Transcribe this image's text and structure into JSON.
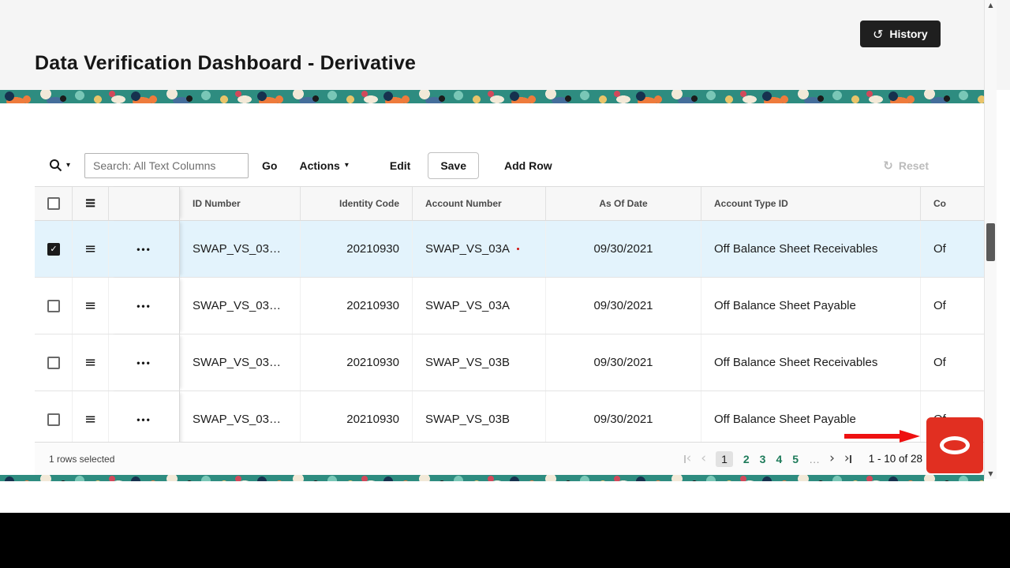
{
  "header": {
    "title": "Data Verification Dashboard - Derivative",
    "history": {
      "label": "History"
    }
  },
  "toolbar": {
    "search": {
      "placeholder": "Search: All Text Columns"
    },
    "go": "Go",
    "actions": "Actions",
    "edit": "Edit",
    "save": "Save",
    "add_row": "Add Row",
    "reset": "Reset"
  },
  "grid": {
    "columns": [
      {
        "label": "ID Number",
        "align": "left"
      },
      {
        "label": "Identity Code",
        "align": "right"
      },
      {
        "label": "Account Number",
        "align": "left"
      },
      {
        "label": "As Of Date",
        "align": "center"
      },
      {
        "label": "Account Type ID",
        "align": "left"
      },
      {
        "label": "Co",
        "align": "left"
      }
    ],
    "rows": [
      {
        "selected": true,
        "cells": [
          "SWAP_VS_03…",
          "20210930",
          "SWAP_VS_03A",
          "09/30/2021",
          "Off Balance Sheet Receivables",
          "Of"
        ]
      },
      {
        "selected": false,
        "cells": [
          "SWAP_VS_03…",
          "20210930",
          "SWAP_VS_03A",
          "09/30/2021",
          "Off Balance Sheet Payable",
          "Of"
        ]
      },
      {
        "selected": false,
        "cells": [
          "SWAP_VS_03…",
          "20210930",
          "SWAP_VS_03B",
          "09/30/2021",
          "Off Balance Sheet Receivables",
          "Of"
        ]
      },
      {
        "selected": false,
        "cells": [
          "SWAP_VS_03…",
          "20210930",
          "SWAP_VS_03B",
          "09/30/2021",
          "Off Balance Sheet Payable",
          "Of"
        ]
      }
    ]
  },
  "footer": {
    "selection": "1 rows selected",
    "pagination": {
      "pages": [
        "1",
        "2",
        "3",
        "4",
        "5"
      ],
      "current": "1",
      "ellipsis": "…",
      "range": "1 - 10 of 28"
    }
  },
  "icons": {
    "history": "↺",
    "caret": "▾",
    "reset": "↻",
    "drag": "≡",
    "row_menu": "•••",
    "check": "✓",
    "prev": "‹",
    "next": "›",
    "scroll_up": "▲",
    "scroll_down": "▼"
  },
  "colors": {
    "accent_green": "#1e7b5a",
    "selected_row": "#e3f3fc",
    "oracle_red": "#e12f21",
    "arrow_red": "#ee1111"
  }
}
